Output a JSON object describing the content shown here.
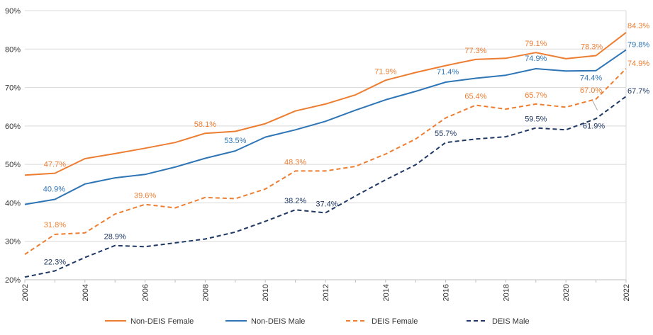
{
  "chart_data": {
    "type": "line",
    "title": "",
    "xlabel": "",
    "ylabel": "",
    "ylim": [
      20,
      90
    ],
    "y_ticks": [
      "20%",
      "30%",
      "40%",
      "50%",
      "60%",
      "70%",
      "80%",
      "90%"
    ],
    "x": [
      2002,
      2003,
      2004,
      2005,
      2006,
      2007,
      2008,
      2009,
      2010,
      2011,
      2012,
      2013,
      2014,
      2015,
      2016,
      2017,
      2018,
      2019,
      2020,
      2021,
      2022
    ],
    "x_tick_labels": [
      "2002",
      "2004",
      "2006",
      "2008",
      "2010",
      "2012",
      "2014",
      "2016",
      "2018",
      "2020",
      "2022"
    ],
    "grid": true,
    "legend_position": "bottom",
    "series": [
      {
        "name": "Non-DEIS Female",
        "color": "#ED7D31",
        "dash": "solid",
        "values": [
          47.2,
          47.7,
          51.5,
          52.8,
          54.2,
          55.7,
          58.1,
          58.6,
          60.6,
          63.9,
          65.7,
          68.1,
          71.9,
          73.9,
          75.7,
          77.3,
          77.6,
          79.1,
          77.5,
          78.3,
          84.3
        ],
        "labels": [
          {
            "year": 2003,
            "text": "47.7%"
          },
          {
            "year": 2008,
            "text": "58.1%"
          },
          {
            "year": 2014,
            "text": "71.9%"
          },
          {
            "year": 2017,
            "text": "77.3%"
          },
          {
            "year": 2019,
            "text": "79.1%"
          },
          {
            "year": 2021,
            "text": "78.3%"
          },
          {
            "year": 2022,
            "text": "84.3%"
          }
        ]
      },
      {
        "name": "Non-DEIS Male",
        "color": "#2E75B6",
        "dash": "solid",
        "values": [
          39.6,
          40.9,
          44.9,
          46.5,
          47.4,
          49.3,
          51.6,
          53.5,
          57.1,
          59.0,
          61.2,
          64.1,
          66.8,
          69.0,
          71.4,
          72.4,
          73.2,
          74.9,
          74.3,
          74.4,
          79.8
        ],
        "labels": [
          {
            "year": 2003,
            "text": "40.9%"
          },
          {
            "year": 2009,
            "text": "53.5%"
          },
          {
            "year": 2016,
            "text": "71.4%"
          },
          {
            "year": 2019,
            "text": "74.9%"
          },
          {
            "year": 2021,
            "text": "74.4%"
          },
          {
            "year": 2022,
            "text": "79.8%"
          }
        ]
      },
      {
        "name": "DEIS Female",
        "color": "#ED7D31",
        "dash": "dashed",
        "values": [
          26.6,
          31.8,
          32.2,
          37.1,
          39.6,
          38.7,
          41.4,
          41.1,
          43.6,
          48.3,
          48.3,
          49.5,
          52.7,
          56.6,
          62.1,
          65.4,
          64.4,
          65.7,
          64.9,
          67.0,
          74.9
        ],
        "labels": [
          {
            "year": 2003,
            "text": "31.8%"
          },
          {
            "year": 2006,
            "text": "39.6%"
          },
          {
            "year": 2011,
            "text": "48.3%"
          },
          {
            "year": 2017,
            "text": "65.4%"
          },
          {
            "year": 2019,
            "text": "65.7%"
          },
          {
            "year": 2021,
            "text": "67.0%"
          },
          {
            "year": 2022,
            "text": "74.9%"
          }
        ]
      },
      {
        "name": "DEIS Male",
        "color": "#1F3864",
        "dash": "dashed",
        "values": [
          20.7,
          22.3,
          25.8,
          28.9,
          28.6,
          29.6,
          30.6,
          32.4,
          35.2,
          38.2,
          37.4,
          41.8,
          46.0,
          49.9,
          55.7,
          56.6,
          57.2,
          59.5,
          59.0,
          61.9,
          67.7
        ],
        "labels": [
          {
            "year": 2003,
            "text": "22.3%"
          },
          {
            "year": 2005,
            "text": "28.9%"
          },
          {
            "year": 2011,
            "text": "38.2%"
          },
          {
            "year": 2012,
            "text": "37.4%"
          },
          {
            "year": 2016,
            "text": "55.7%"
          },
          {
            "year": 2019,
            "text": "59.5%"
          },
          {
            "year": 2021,
            "text": "61.9%"
          },
          {
            "year": 2022,
            "text": "67.7%"
          }
        ]
      }
    ]
  }
}
